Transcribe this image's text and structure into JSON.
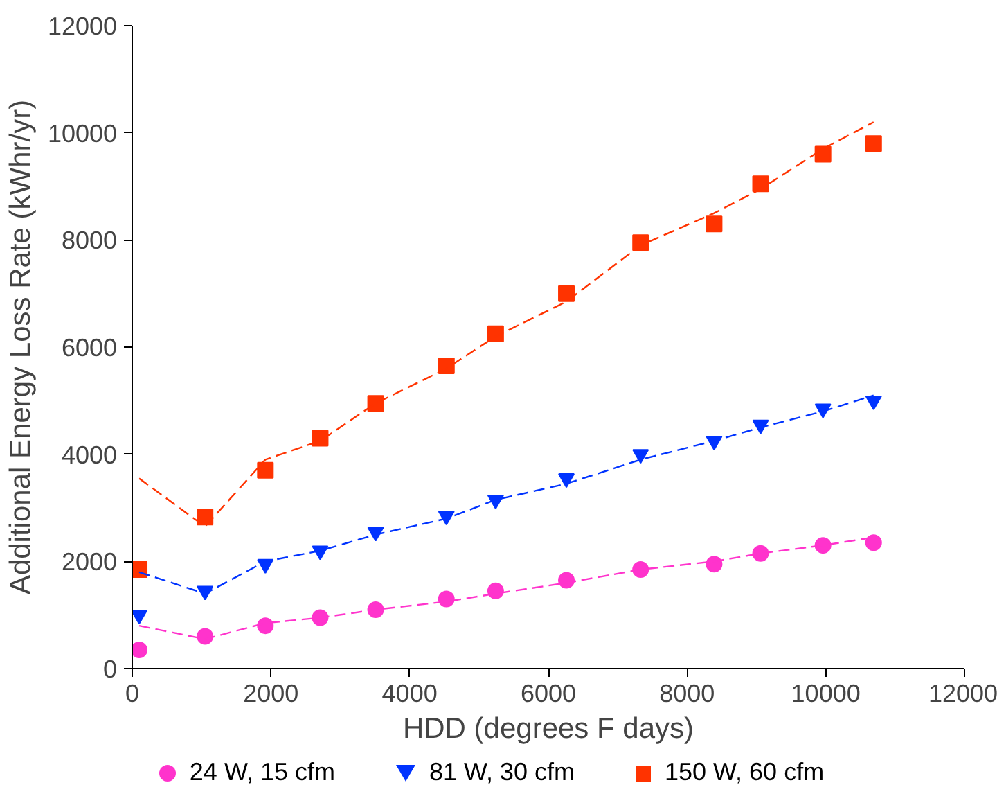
{
  "chart_data": {
    "type": "scatter",
    "xlabel": "HDD (degrees F days)",
    "ylabel": "Additional Energy Loss Rate (kWhr/yr)",
    "x": [
      100,
      1050,
      1920,
      2710,
      3510,
      4530,
      5240,
      6260,
      7330,
      8390,
      9060,
      9960,
      10690
    ],
    "xlim": [
      0,
      12000
    ],
    "xticks": [
      0,
      2000,
      4000,
      6000,
      8000,
      10000,
      12000
    ],
    "ylim": [
      0,
      12000
    ],
    "yticks": [
      0,
      2000,
      4000,
      6000,
      8000,
      10000,
      12000
    ],
    "grid": false,
    "legend": "bottom",
    "series": [
      {
        "name": "24 W, 15 cfm",
        "color": "#ff33cc",
        "marker": "circle",
        "values": [
          350,
          600,
          800,
          950,
          1100,
          1300,
          1450,
          1650,
          1850,
          1950,
          2150,
          2300,
          2350
        ]
      },
      {
        "name": "81 W, 30 cfm",
        "color": "#0033ff",
        "marker": "triangle",
        "values": [
          1000,
          1450,
          1950,
          2200,
          2550,
          2850,
          3150,
          3550,
          4000,
          4250,
          4550,
          4850,
          5000
        ]
      },
      {
        "name": "150 W, 60 cfm",
        "color": "#ff3300",
        "marker": "square",
        "values": [
          1850,
          2830,
          3700,
          4300,
          4950,
          5650,
          6250,
          7000,
          7950,
          8300,
          9050,
          9600,
          9800
        ]
      },
      {
        "type": "line",
        "line_style": "dashed",
        "color": "#ff33cc",
        "marker": "none",
        "values": [
          800,
          550,
          850,
          950,
          1100,
          1250,
          1400,
          1600,
          1850,
          2000,
          2150,
          2300,
          2450
        ]
      },
      {
        "type": "line",
        "line_style": "dashed",
        "color": "#0033ff",
        "marker": "none",
        "values": [
          1800,
          1400,
          2000,
          2200,
          2500,
          2800,
          3150,
          3450,
          3900,
          4250,
          4500,
          4800,
          5100
        ]
      },
      {
        "type": "line",
        "line_style": "dashed",
        "color": "#ff3300",
        "marker": "none",
        "values": [
          3550,
          2650,
          3900,
          4250,
          4950,
          5600,
          6200,
          6850,
          7900,
          8500,
          8950,
          9700,
          10200
        ]
      }
    ]
  }
}
